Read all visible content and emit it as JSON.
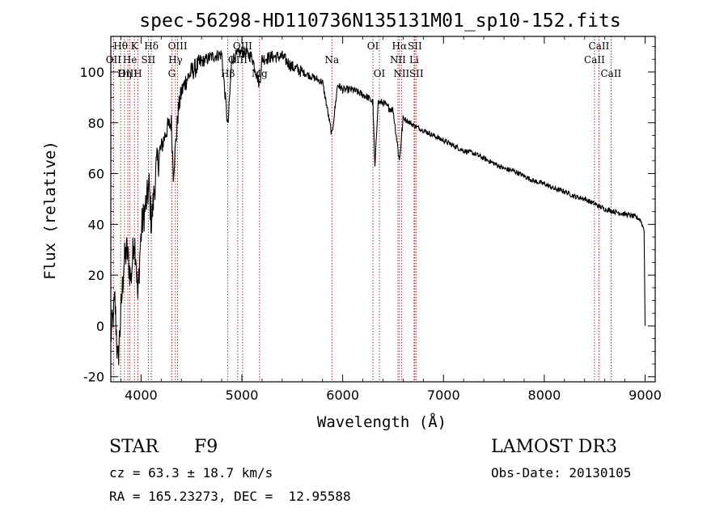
{
  "chart_data": {
    "type": "line",
    "title": "spec-56298-HD110736N135131M01_sp10-152.fits",
    "xlabel": "Wavelength (Å)",
    "ylabel": "Flux (relative)",
    "xlim": [
      3700,
      9100
    ],
    "ylim": [
      -22,
      114
    ],
    "xticks": [
      4000,
      5000,
      6000,
      7000,
      8000,
      9000
    ],
    "yticks": [
      -20,
      0,
      20,
      40,
      60,
      80,
      100
    ],
    "series": [
      {
        "name": "spectrum",
        "anchors": [
          [
            3700,
            -5
          ],
          [
            3740,
            10
          ],
          [
            3770,
            -15
          ],
          [
            3800,
            5
          ],
          [
            3830,
            25
          ],
          [
            3860,
            30
          ],
          [
            3900,
            18
          ],
          [
            3930,
            35
          ],
          [
            3950,
            28
          ],
          [
            3968,
            10
          ],
          [
            3990,
            30
          ],
          [
            4010,
            40
          ],
          [
            4050,
            48
          ],
          [
            4080,
            55
          ],
          [
            4102,
            40
          ],
          [
            4150,
            62
          ],
          [
            4200,
            70
          ],
          [
            4260,
            78
          ],
          [
            4300,
            80
          ],
          [
            4320,
            60
          ],
          [
            4340,
            70
          ],
          [
            4370,
            85
          ],
          [
            4400,
            92
          ],
          [
            4450,
            97
          ],
          [
            4500,
            100
          ],
          [
            4600,
            104
          ],
          [
            4700,
            106
          ],
          [
            4800,
            107
          ],
          [
            4861,
            78
          ],
          [
            4900,
            105
          ],
          [
            5000,
            108
          ],
          [
            5100,
            106
          ],
          [
            5175,
            95
          ],
          [
            5200,
            105
          ],
          [
            5300,
            106
          ],
          [
            5400,
            106
          ],
          [
            5500,
            102
          ],
          [
            5600,
            100
          ],
          [
            5700,
            98
          ],
          [
            5800,
            96
          ],
          [
            5893,
            75
          ],
          [
            5950,
            95
          ],
          [
            6000,
            93
          ],
          [
            6100,
            93
          ],
          [
            6200,
            91
          ],
          [
            6250,
            90
          ],
          [
            6300,
            88
          ],
          [
            6320,
            62
          ],
          [
            6350,
            88
          ],
          [
            6400,
            88
          ],
          [
            6450,
            86
          ],
          [
            6500,
            85
          ],
          [
            6563,
            65
          ],
          [
            6600,
            82
          ],
          [
            6700,
            79
          ],
          [
            6800,
            77
          ],
          [
            6900,
            75
          ],
          [
            7000,
            73
          ],
          [
            7100,
            71
          ],
          [
            7200,
            69
          ],
          [
            7300,
            68
          ],
          [
            7400,
            66
          ],
          [
            7500,
            64
          ],
          [
            7600,
            62
          ],
          [
            7700,
            61
          ],
          [
            7800,
            59
          ],
          [
            7900,
            57
          ],
          [
            8000,
            56
          ],
          [
            8100,
            54
          ],
          [
            8200,
            53
          ],
          [
            8300,
            51
          ],
          [
            8400,
            50
          ],
          [
            8500,
            48
          ],
          [
            8600,
            46
          ],
          [
            8700,
            45
          ],
          [
            8800,
            44
          ],
          [
            8900,
            43
          ],
          [
            8950,
            42
          ],
          [
            8990,
            38
          ],
          [
            9000,
            0
          ]
        ]
      }
    ],
    "lines": [
      {
        "label": "Hθ",
        "x": 3797,
        "row": 1
      },
      {
        "label": "OII",
        "x": 3727,
        "row": 2
      },
      {
        "label": "OIII",
        "x": 3869,
        "row": 3
      },
      {
        "label": "He",
        "x": 3889,
        "row": 2
      },
      {
        "label": "Hη",
        "x": 3835,
        "row": 3
      },
      {
        "label": "K",
        "x": 3934,
        "row": 1
      },
      {
        "label": "H",
        "x": 3968,
        "row": 3
      },
      {
        "label": "Hδ",
        "x": 4102,
        "row": 1
      },
      {
        "label": "SII",
        "x": 4072,
        "row": 2
      },
      {
        "label": "OIII",
        "x": 4363,
        "row": 1
      },
      {
        "label": "Hγ",
        "x": 4341,
        "row": 2
      },
      {
        "label": "G",
        "x": 4305,
        "row": 3
      },
      {
        "label": "OIII",
        "x": 5007,
        "row": 1
      },
      {
        "label": "OIII",
        "x": 4959,
        "row": 2
      },
      {
        "label": "Hβ",
        "x": 4861,
        "row": 3
      },
      {
        "label": "Mg",
        "x": 5175,
        "row": 3
      },
      {
        "label": "Na",
        "x": 5893,
        "row": 2
      },
      {
        "label": "OI",
        "x": 6300,
        "row": 1
      },
      {
        "label": "OI",
        "x": 6364,
        "row": 3
      },
      {
        "label": "Hα",
        "x": 6563,
        "row": 1
      },
      {
        "label": "NII",
        "x": 6548,
        "row": 2
      },
      {
        "label": "NII",
        "x": 6583,
        "row": 3
      },
      {
        "label": "SII",
        "x": 6716,
        "row": 1
      },
      {
        "label": "Li",
        "x": 6708,
        "row": 2
      },
      {
        "label": "SII",
        "x": 6731,
        "row": 3
      },
      {
        "label": "CaII",
        "x": 8542,
        "row": 1
      },
      {
        "label": "CaII",
        "x": 8498,
        "row": 2
      },
      {
        "label": "CaII",
        "x": 8662,
        "row": 3
      }
    ],
    "line_color": "#8b0000"
  },
  "info": {
    "class": "STAR",
    "subclass": "F9",
    "survey": "LAMOST DR3",
    "cz": "cz = 63.3 ± 18.7 km/s",
    "obs_date": "Obs-Date: 20130105",
    "radec": "RA = 165.23273, DEC =  12.95588"
  }
}
